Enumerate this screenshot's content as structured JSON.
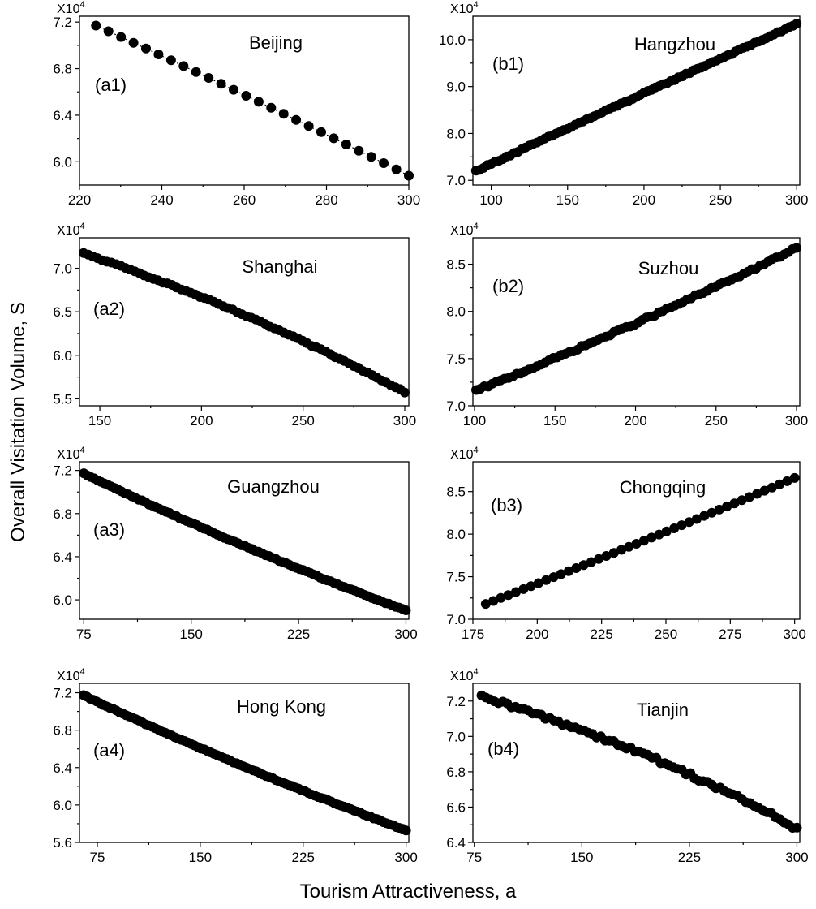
{
  "chart_data": {
    "ylabel": "Overall Visitation Volume, S",
    "xlabel": "Tourism Attractiveness, a",
    "panels": [
      {
        "id": "a1",
        "panel_label": "(a1)",
        "title": "Beijing",
        "type": "scatter",
        "xlim": [
          220,
          300
        ],
        "ylim": [
          5.8,
          7.25
        ],
        "xticks": [
          "220",
          "240",
          "260",
          "280",
          "300"
        ],
        "xtick_values": [
          220,
          240,
          260,
          280,
          300
        ],
        "yticks": [
          "6.0",
          "6.4",
          "6.8",
          "7.2"
        ],
        "ytick_values": [
          6.0,
          6.4,
          6.8,
          7.2
        ],
        "y_multiplier": "X10",
        "y_multiplier_exp": "4",
        "connected": true,
        "x": [
          224,
          300
        ],
        "y": [
          7.17,
          5.88
        ],
        "n_points": 26,
        "curve": 0.05,
        "noise": 0
      },
      {
        "id": "b1",
        "panel_label": "(b1)",
        "title": "Hangzhou",
        "type": "scatter",
        "xlim": [
          88,
          302
        ],
        "ylim": [
          6.9,
          10.5
        ],
        "xticks": [
          "100",
          "150",
          "200",
          "250",
          "300"
        ],
        "xtick_values": [
          100,
          150,
          200,
          250,
          300
        ],
        "yticks": [
          "7.0",
          "8.0",
          "9.0",
          "10.0"
        ],
        "ytick_values": [
          7.0,
          8.0,
          9.0,
          10.0
        ],
        "y_multiplier": "X10",
        "y_multiplier_exp": "4",
        "connected": false,
        "x": [
          90,
          300
        ],
        "y": [
          7.2,
          10.33
        ],
        "n_points": 85,
        "curve": 0.02,
        "noise": 0.015
      },
      {
        "id": "a2",
        "panel_label": "(a2)",
        "title": "Shanghai",
        "type": "scatter",
        "xlim": [
          140,
          302
        ],
        "ylim": [
          5.42,
          7.35
        ],
        "xticks": [
          "150",
          "200",
          "250",
          "300"
        ],
        "xtick_values": [
          150,
          200,
          250,
          300
        ],
        "yticks": [
          "5.5",
          "6.0",
          "6.5",
          "7.0"
        ],
        "ytick_values": [
          5.5,
          6.0,
          6.5,
          7.0
        ],
        "y_multiplier": "X10",
        "y_multiplier_exp": "4",
        "connected": false,
        "x": [
          142,
          300
        ],
        "y": [
          7.17,
          5.58
        ],
        "n_points": 70,
        "curve": 0.22,
        "noise": 0.008
      },
      {
        "id": "b2",
        "panel_label": "(b2)",
        "title": "Suzhou",
        "type": "scatter",
        "xlim": [
          99,
          302
        ],
        "ylim": [
          7.0,
          8.78
        ],
        "xticks": [
          "100",
          "150",
          "200",
          "250",
          "300"
        ],
        "xtick_values": [
          100,
          150,
          200,
          250,
          300
        ],
        "yticks": [
          "7.0",
          "7.5",
          "8.0",
          "8.5"
        ],
        "ytick_values": [
          7.0,
          7.5,
          8.0,
          8.5
        ],
        "y_multiplier": "X10",
        "y_multiplier_exp": "4",
        "connected": false,
        "x": [
          101,
          300
        ],
        "y": [
          7.16,
          8.67
        ],
        "n_points": 80,
        "curve": -0.1,
        "noise": 0.012
      },
      {
        "id": "a3",
        "panel_label": "(a3)",
        "title": "Guangzhou",
        "type": "scatter",
        "xlim": [
          72,
          302
        ],
        "ylim": [
          5.82,
          7.28
        ],
        "xticks": [
          "75",
          "150",
          "225",
          "300"
        ],
        "xtick_values": [
          75,
          150,
          225,
          300
        ],
        "yticks": [
          "6.0",
          "6.4",
          "6.8",
          "7.2"
        ],
        "ytick_values": [
          6.0,
          6.4,
          6.8,
          7.2
        ],
        "y_multiplier": "X10",
        "y_multiplier_exp": "4",
        "connected": false,
        "x": [
          75,
          300
        ],
        "y": [
          7.17,
          5.9
        ],
        "n_points": 95,
        "curve": -0.12,
        "noise": 0.005
      },
      {
        "id": "b3",
        "panel_label": "(b3)",
        "title": "Chongqing",
        "type": "scatter",
        "xlim": [
          175,
          302
        ],
        "ylim": [
          7.0,
          8.85
        ],
        "xticks": [
          "175",
          "200",
          "225",
          "250",
          "275",
          "300"
        ],
        "xtick_values": [
          175,
          200,
          225,
          250,
          275,
          300
        ],
        "yticks": [
          "7.0",
          "7.5",
          "8.0",
          "8.5"
        ],
        "ytick_values": [
          7.0,
          7.5,
          8.0,
          8.5
        ],
        "y_multiplier": "X10",
        "y_multiplier_exp": "4",
        "connected": false,
        "x": [
          180,
          300
        ],
        "y": [
          7.18,
          8.66
        ],
        "n_points": 42,
        "curve": -0.04,
        "noise": 0
      },
      {
        "id": "a4",
        "panel_label": "(a4)",
        "title": "Hong Kong",
        "type": "scatter",
        "xlim": [
          62,
          302
        ],
        "ylim": [
          5.6,
          7.3
        ],
        "xticks": [
          "75",
          "150",
          "225",
          "300"
        ],
        "xtick_values": [
          75,
          150,
          225,
          300
        ],
        "yticks": [
          "5.6",
          "6.0",
          "6.4",
          "6.8",
          "7.2"
        ],
        "ytick_values": [
          5.6,
          6.0,
          6.4,
          6.8,
          7.2
        ],
        "y_multiplier": "X10",
        "y_multiplier_exp": "4",
        "connected": false,
        "x": [
          65,
          300
        ],
        "y": [
          7.17,
          5.73
        ],
        "n_points": 100,
        "curve": -0.12,
        "noise": 0.005
      },
      {
        "id": "b4",
        "panel_label": "(b4)",
        "title": "Tianjin",
        "type": "scatter",
        "xlim": [
          74,
          302
        ],
        "ylim": [
          6.4,
          7.3
        ],
        "xticks": [
          "75",
          "150",
          "225",
          "300"
        ],
        "xtick_values": [
          75,
          150,
          225,
          300
        ],
        "yticks": [
          "6.4",
          "6.6",
          "6.8",
          "7.0",
          "7.2"
        ],
        "ytick_values": [
          6.4,
          6.6,
          6.8,
          7.0,
          7.2
        ],
        "y_multiplier": "X10",
        "y_multiplier_exp": "4",
        "connected": false,
        "x": [
          80,
          300
        ],
        "y": [
          7.22,
          6.48
        ],
        "n_points": 75,
        "curve": 0.32,
        "noise": 0.012
      }
    ]
  }
}
